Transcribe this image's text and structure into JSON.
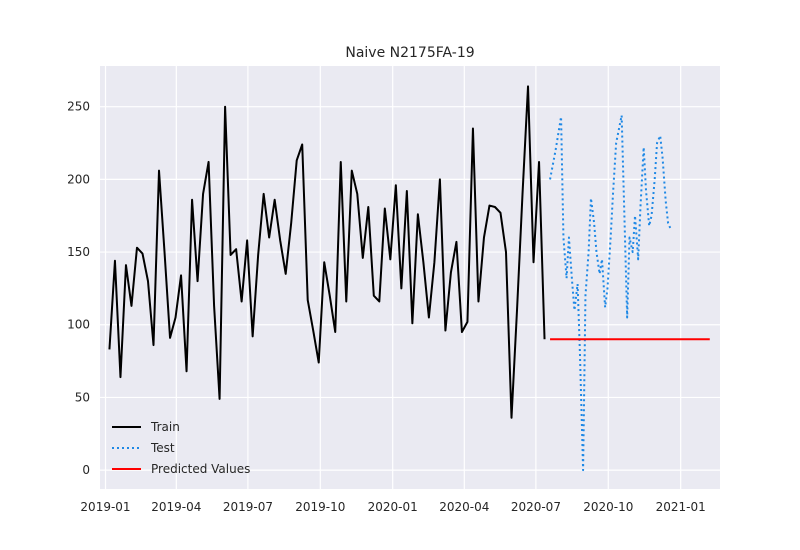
{
  "chart_data": {
    "type": "line",
    "title": "Naive N2175FA-19",
    "xlabel": "",
    "ylabel": "",
    "x_ticks": [
      "2019-01",
      "2019-04",
      "2019-07",
      "2019-10",
      "2020-01",
      "2020-04",
      "2020-07",
      "2020-10",
      "2021-01"
    ],
    "y_ticks": [
      0,
      50,
      100,
      150,
      200,
      250
    ],
    "xlim": [
      "2018-12-25",
      "2021-02-20"
    ],
    "ylim": [
      -13,
      278
    ],
    "grid": true,
    "legend_position": "lower-left",
    "colors": {
      "train": "#000000",
      "test": "#1e88e5",
      "predicted": "#ff0000",
      "plot_bg": "#eaeaf2",
      "grid": "#ffffff"
    },
    "series": [
      {
        "name": "Train",
        "style": "solid",
        "x": [
          "2019-01-06",
          "2019-01-13",
          "2019-01-20",
          "2019-01-27",
          "2019-02-03",
          "2019-02-10",
          "2019-02-17",
          "2019-02-24",
          "2019-03-03",
          "2019-03-10",
          "2019-03-17",
          "2019-03-24",
          "2019-03-31",
          "2019-04-07",
          "2019-04-14",
          "2019-04-21",
          "2019-04-28",
          "2019-05-05",
          "2019-05-12",
          "2019-05-19",
          "2019-05-26",
          "2019-06-02",
          "2019-06-09",
          "2019-06-16",
          "2019-06-23",
          "2019-06-30",
          "2019-07-07",
          "2019-07-14",
          "2019-07-21",
          "2019-07-28",
          "2019-08-04",
          "2019-08-11",
          "2019-08-18",
          "2019-08-25",
          "2019-09-01",
          "2019-09-08",
          "2019-09-15",
          "2019-09-22",
          "2019-09-29",
          "2019-10-06",
          "2019-10-13",
          "2019-10-20",
          "2019-10-27",
          "2019-11-03",
          "2019-11-10",
          "2019-11-17",
          "2019-11-24",
          "2019-12-01",
          "2019-12-08",
          "2019-12-15",
          "2019-12-22",
          "2019-12-29",
          "2020-01-05",
          "2020-01-12",
          "2020-01-19",
          "2020-01-26",
          "2020-02-02",
          "2020-02-09",
          "2020-02-16",
          "2020-02-23",
          "2020-03-01",
          "2020-03-08",
          "2020-03-15",
          "2020-03-22",
          "2020-03-29",
          "2020-04-05",
          "2020-04-12",
          "2020-04-19",
          "2020-04-26",
          "2020-05-03",
          "2020-05-10",
          "2020-05-17",
          "2020-05-24",
          "2020-05-31",
          "2020-06-07",
          "2020-06-14",
          "2020-06-21",
          "2020-06-28",
          "2020-07-05",
          "2020-07-12"
        ],
        "values": [
          83,
          144,
          64,
          141,
          113,
          153,
          149,
          130,
          86,
          206,
          150,
          91,
          105,
          134,
          68,
          186,
          130,
          190,
          212,
          113,
          49,
          250,
          148,
          152,
          116,
          158,
          92,
          148,
          190,
          160,
          186,
          158,
          135,
          170,
          213,
          224,
          117,
          96,
          74,
          143,
          120,
          95,
          212,
          116,
          206,
          190,
          146,
          181,
          120,
          116,
          180,
          145,
          196,
          125,
          192,
          101,
          176,
          143,
          105,
          143,
          200,
          96,
          136,
          157,
          95,
          102,
          235,
          116,
          160,
          182,
          181,
          177,
          150,
          36,
          110,
          190,
          264,
          143,
          212,
          90
        ]
      },
      {
        "name": "Test",
        "style": "dotted",
        "x": [
          "2020-07-19",
          "2020-07-26",
          "2020-08-02",
          "2020-08-05",
          "2020-08-09",
          "2020-08-12",
          "2020-08-16",
          "2020-08-19",
          "2020-08-23",
          "2020-08-26",
          "2020-08-30",
          "2020-09-02",
          "2020-09-06",
          "2020-09-09",
          "2020-09-13",
          "2020-09-16",
          "2020-09-20",
          "2020-09-23",
          "2020-09-27",
          "2020-09-30",
          "2020-10-04",
          "2020-10-07",
          "2020-10-11",
          "2020-10-18",
          "2020-10-25",
          "2020-10-28",
          "2020-11-01",
          "2020-11-04",
          "2020-11-08",
          "2020-11-11",
          "2020-11-15",
          "2020-11-18",
          "2020-11-22",
          "2020-11-25",
          "2020-11-29",
          "2020-12-02",
          "2020-12-06",
          "2020-12-09",
          "2020-12-13",
          "2020-12-16",
          "2020-12-20"
        ],
        "values": [
          200,
          220,
          243,
          160,
          132,
          160,
          130,
          110,
          128,
          80,
          0,
          120,
          150,
          187,
          170,
          150,
          135,
          145,
          112,
          125,
          160,
          190,
          225,
          244,
          105,
          160,
          150,
          175,
          145,
          182,
          222,
          192,
          168,
          175,
          200,
          225,
          230,
          215,
          185,
          170,
          165
        ]
      },
      {
        "name": "Predicted Values",
        "style": "solid",
        "x": [
          "2020-07-19",
          "2021-02-07"
        ],
        "values": [
          90,
          90
        ]
      }
    ]
  }
}
